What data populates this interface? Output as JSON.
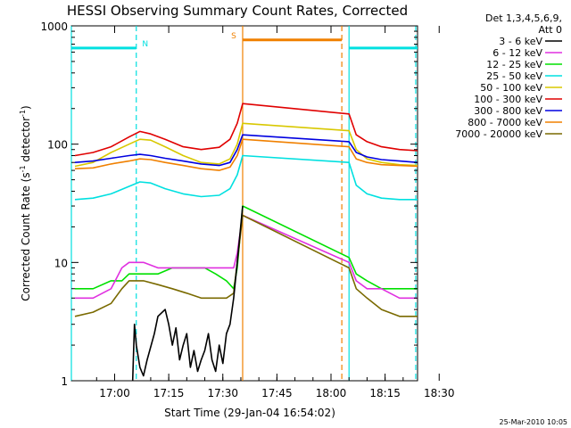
{
  "chart_data": {
    "type": "line",
    "title": "HESSI Observing Summary Count Rates, Corrected",
    "xlabel": "Start Time (29-Jan-04 16:54:02)",
    "ylabel_pre": "Corrected Count Rate (s",
    "ylabel_sup1": "-1",
    "ylabel_mid": " detector",
    "ylabel_sup2": "-1",
    "ylabel_post": ")",
    "y_scale": "log",
    "ylim": [
      1,
      1000
    ],
    "xlim_minutes": [
      -6,
      90
    ],
    "x_ticks": [
      "17:00",
      "17:15",
      "17:30",
      "17:45",
      "18:00",
      "18:15",
      "18:30"
    ],
    "y_ticks": [
      "1",
      "10",
      "100",
      "1000"
    ],
    "legend_header": [
      "Det 1,3,4,5,6,9,",
      "Att 0"
    ],
    "legend": [
      {
        "label": "3 - 6 keV",
        "color": "#000000"
      },
      {
        "label": "6 - 12 keV",
        "color": "#e030e0"
      },
      {
        "label": "12 - 25 keV",
        "color": "#00e000"
      },
      {
        "label": "25 - 50 keV",
        "color": "#00e0e0"
      },
      {
        "label": "50 - 100 keV",
        "color": "#d8c800"
      },
      {
        "label": "100 - 300 keV",
        "color": "#e00000"
      },
      {
        "label": "300 - 800 keV",
        "color": "#0000e0"
      },
      {
        "label": "800 - 7000 keV",
        "color": "#f08000"
      },
      {
        "label": "7000 - 20000 keV",
        "color": "#7a6a00"
      }
    ],
    "series": [
      {
        "name": "100 - 300 keV",
        "color": "#e00000",
        "points": [
          [
            -5,
            80
          ],
          [
            0,
            85
          ],
          [
            5,
            95
          ],
          [
            10,
            115
          ],
          [
            13,
            128
          ],
          [
            16,
            122
          ],
          [
            20,
            110
          ],
          [
            25,
            95
          ],
          [
            30,
            90
          ],
          [
            35,
            94
          ],
          [
            38,
            110
          ],
          [
            40,
            150
          ],
          [
            41.5,
            220
          ],
          [
            71,
            180
          ],
          [
            73,
            120
          ],
          [
            76,
            105
          ],
          [
            80,
            95
          ],
          [
            85,
            90
          ],
          [
            90,
            88
          ]
        ]
      },
      {
        "name": "50 - 100 keV",
        "color": "#d8c800",
        "points": [
          [
            -5,
            65
          ],
          [
            0,
            70
          ],
          [
            5,
            85
          ],
          [
            10,
            100
          ],
          [
            13,
            110
          ],
          [
            16,
            108
          ],
          [
            20,
            95
          ],
          [
            25,
            80
          ],
          [
            30,
            70
          ],
          [
            35,
            68
          ],
          [
            38,
            75
          ],
          [
            40,
            100
          ],
          [
            41.5,
            150
          ],
          [
            71,
            130
          ],
          [
            73,
            90
          ],
          [
            76,
            75
          ],
          [
            80,
            70
          ],
          [
            85,
            67
          ],
          [
            90,
            66
          ]
        ]
      },
      {
        "name": "300 - 800 keV",
        "color": "#0000e0",
        "points": [
          [
            -5,
            70
          ],
          [
            0,
            72
          ],
          [
            5,
            76
          ],
          [
            10,
            80
          ],
          [
            13,
            82
          ],
          [
            16,
            80
          ],
          [
            20,
            76
          ],
          [
            25,
            72
          ],
          [
            30,
            68
          ],
          [
            35,
            66
          ],
          [
            38,
            70
          ],
          [
            40,
            90
          ],
          [
            41.5,
            120
          ],
          [
            71,
            105
          ],
          [
            73,
            85
          ],
          [
            76,
            78
          ],
          [
            80,
            74
          ],
          [
            85,
            72
          ],
          [
            90,
            70
          ]
        ]
      },
      {
        "name": "800 - 7000 keV",
        "color": "#f08000",
        "points": [
          [
            -5,
            62
          ],
          [
            0,
            63
          ],
          [
            5,
            68
          ],
          [
            10,
            72
          ],
          [
            13,
            75
          ],
          [
            16,
            74
          ],
          [
            20,
            70
          ],
          [
            25,
            66
          ],
          [
            30,
            62
          ],
          [
            35,
            60
          ],
          [
            38,
            64
          ],
          [
            40,
            80
          ],
          [
            41.5,
            110
          ],
          [
            71,
            95
          ],
          [
            73,
            75
          ],
          [
            76,
            70
          ],
          [
            80,
            67
          ],
          [
            85,
            66
          ],
          [
            90,
            65
          ]
        ]
      },
      {
        "name": "25 - 50 keV",
        "color": "#00e0e0",
        "points": [
          [
            -5,
            34
          ],
          [
            0,
            35
          ],
          [
            5,
            38
          ],
          [
            10,
            44
          ],
          [
            13,
            48
          ],
          [
            16,
            47
          ],
          [
            20,
            42
          ],
          [
            25,
            38
          ],
          [
            30,
            36
          ],
          [
            35,
            37
          ],
          [
            38,
            42
          ],
          [
            40,
            55
          ],
          [
            41.5,
            80
          ],
          [
            71,
            70
          ],
          [
            73,
            45
          ],
          [
            76,
            38
          ],
          [
            80,
            35
          ],
          [
            85,
            34
          ],
          [
            90,
            34
          ]
        ]
      },
      {
        "name": "12 - 25 keV",
        "color": "#00e000",
        "points": [
          [
            -5,
            6
          ],
          [
            0,
            6
          ],
          [
            5,
            7
          ],
          [
            8,
            7
          ],
          [
            10,
            8
          ],
          [
            14,
            8
          ],
          [
            18,
            8
          ],
          [
            22,
            9
          ],
          [
            25,
            9
          ],
          [
            28,
            9
          ],
          [
            31,
            9
          ],
          [
            34,
            8
          ],
          [
            37,
            7
          ],
          [
            39,
            6
          ],
          [
            40,
            9
          ],
          [
            41.5,
            30
          ],
          [
            71,
            11
          ],
          [
            73,
            8
          ],
          [
            76,
            7
          ],
          [
            80,
            6
          ],
          [
            85,
            6
          ],
          [
            90,
            6
          ]
        ]
      },
      {
        "name": "6 - 12 keV",
        "color": "#e030e0",
        "points": [
          [
            -5,
            5
          ],
          [
            0,
            5
          ],
          [
            5,
            6
          ],
          [
            8,
            9
          ],
          [
            10,
            10
          ],
          [
            14,
            10
          ],
          [
            18,
            9
          ],
          [
            22,
            9
          ],
          [
            26,
            9
          ],
          [
            30,
            9
          ],
          [
            34,
            9
          ],
          [
            37,
            9
          ],
          [
            39,
            9
          ],
          [
            40,
            12
          ],
          [
            41.5,
            25
          ],
          [
            71,
            10
          ],
          [
            73,
            7
          ],
          [
            76,
            6
          ],
          [
            80,
            6
          ],
          [
            85,
            5
          ],
          [
            90,
            5
          ]
        ]
      },
      {
        "name": "7000 - 20000 keV",
        "color": "#7a6a00",
        "points": [
          [
            -5,
            3.5
          ],
          [
            0,
            3.8
          ],
          [
            5,
            4.5
          ],
          [
            8,
            6
          ],
          [
            10,
            7
          ],
          [
            14,
            7
          ],
          [
            18,
            6.5
          ],
          [
            22,
            6
          ],
          [
            26,
            5.5
          ],
          [
            30,
            5
          ],
          [
            34,
            5
          ],
          [
            37,
            5
          ],
          [
            39,
            5.5
          ],
          [
            40,
            10
          ],
          [
            41.5,
            25
          ],
          [
            71,
            9
          ],
          [
            73,
            6
          ],
          [
            76,
            5
          ],
          [
            80,
            4
          ],
          [
            85,
            3.5
          ],
          [
            90,
            3.5
          ]
        ]
      },
      {
        "name": "3 - 6 keV",
        "color": "#000000",
        "points": [
          [
            11,
            1
          ],
          [
            11.5,
            3
          ],
          [
            12,
            2
          ],
          [
            13,
            1.3
          ],
          [
            14,
            1.1
          ],
          [
            15,
            1.5
          ],
          [
            17,
            2.5
          ],
          [
            18,
            3.5
          ],
          [
            20,
            4
          ],
          [
            21,
            3
          ],
          [
            22,
            2
          ],
          [
            23,
            2.8
          ],
          [
            24,
            1.5
          ],
          [
            25,
            2
          ],
          [
            26,
            2.5
          ],
          [
            27,
            1.3
          ],
          [
            28,
            1.8
          ],
          [
            29,
            1.2
          ],
          [
            30,
            1.5
          ],
          [
            31,
            1.8
          ],
          [
            32,
            2.5
          ],
          [
            33,
            1.5
          ],
          [
            34,
            1.2
          ],
          [
            35,
            2
          ],
          [
            36,
            1.4
          ],
          [
            37,
            2.5
          ],
          [
            38,
            3
          ],
          [
            39,
            5
          ],
          [
            40,
            10
          ],
          [
            41.5,
            30
          ]
        ]
      }
    ],
    "cyan_flag": {
      "color": "#00e0e0",
      "y_value": 650,
      "segments": [
        [
          -6,
          12
        ],
        [
          71,
          90
        ]
      ],
      "label": "N"
    },
    "orange_flag": {
      "color": "#f08000",
      "y_value": 760,
      "segments": [
        [
          41.5,
          69
        ]
      ],
      "label": "S"
    },
    "vlines": [
      {
        "x": -6,
        "color": "#00e0e0",
        "style": "solid"
      },
      {
        "x": 12,
        "color": "#00e0e0",
        "style": "dashed"
      },
      {
        "x": 41.5,
        "color": "#f08000",
        "style": "solid"
      },
      {
        "x": 69,
        "color": "#f08000",
        "style": "dashed"
      },
      {
        "x": 71,
        "color": "#00e0e0",
        "style": "solid"
      },
      {
        "x": 89.5,
        "color": "#00e0e0",
        "style": "dashed"
      }
    ],
    "grid": false,
    "legend_position": "right"
  },
  "footer_stamp": "25-Mar-2010 10:05"
}
